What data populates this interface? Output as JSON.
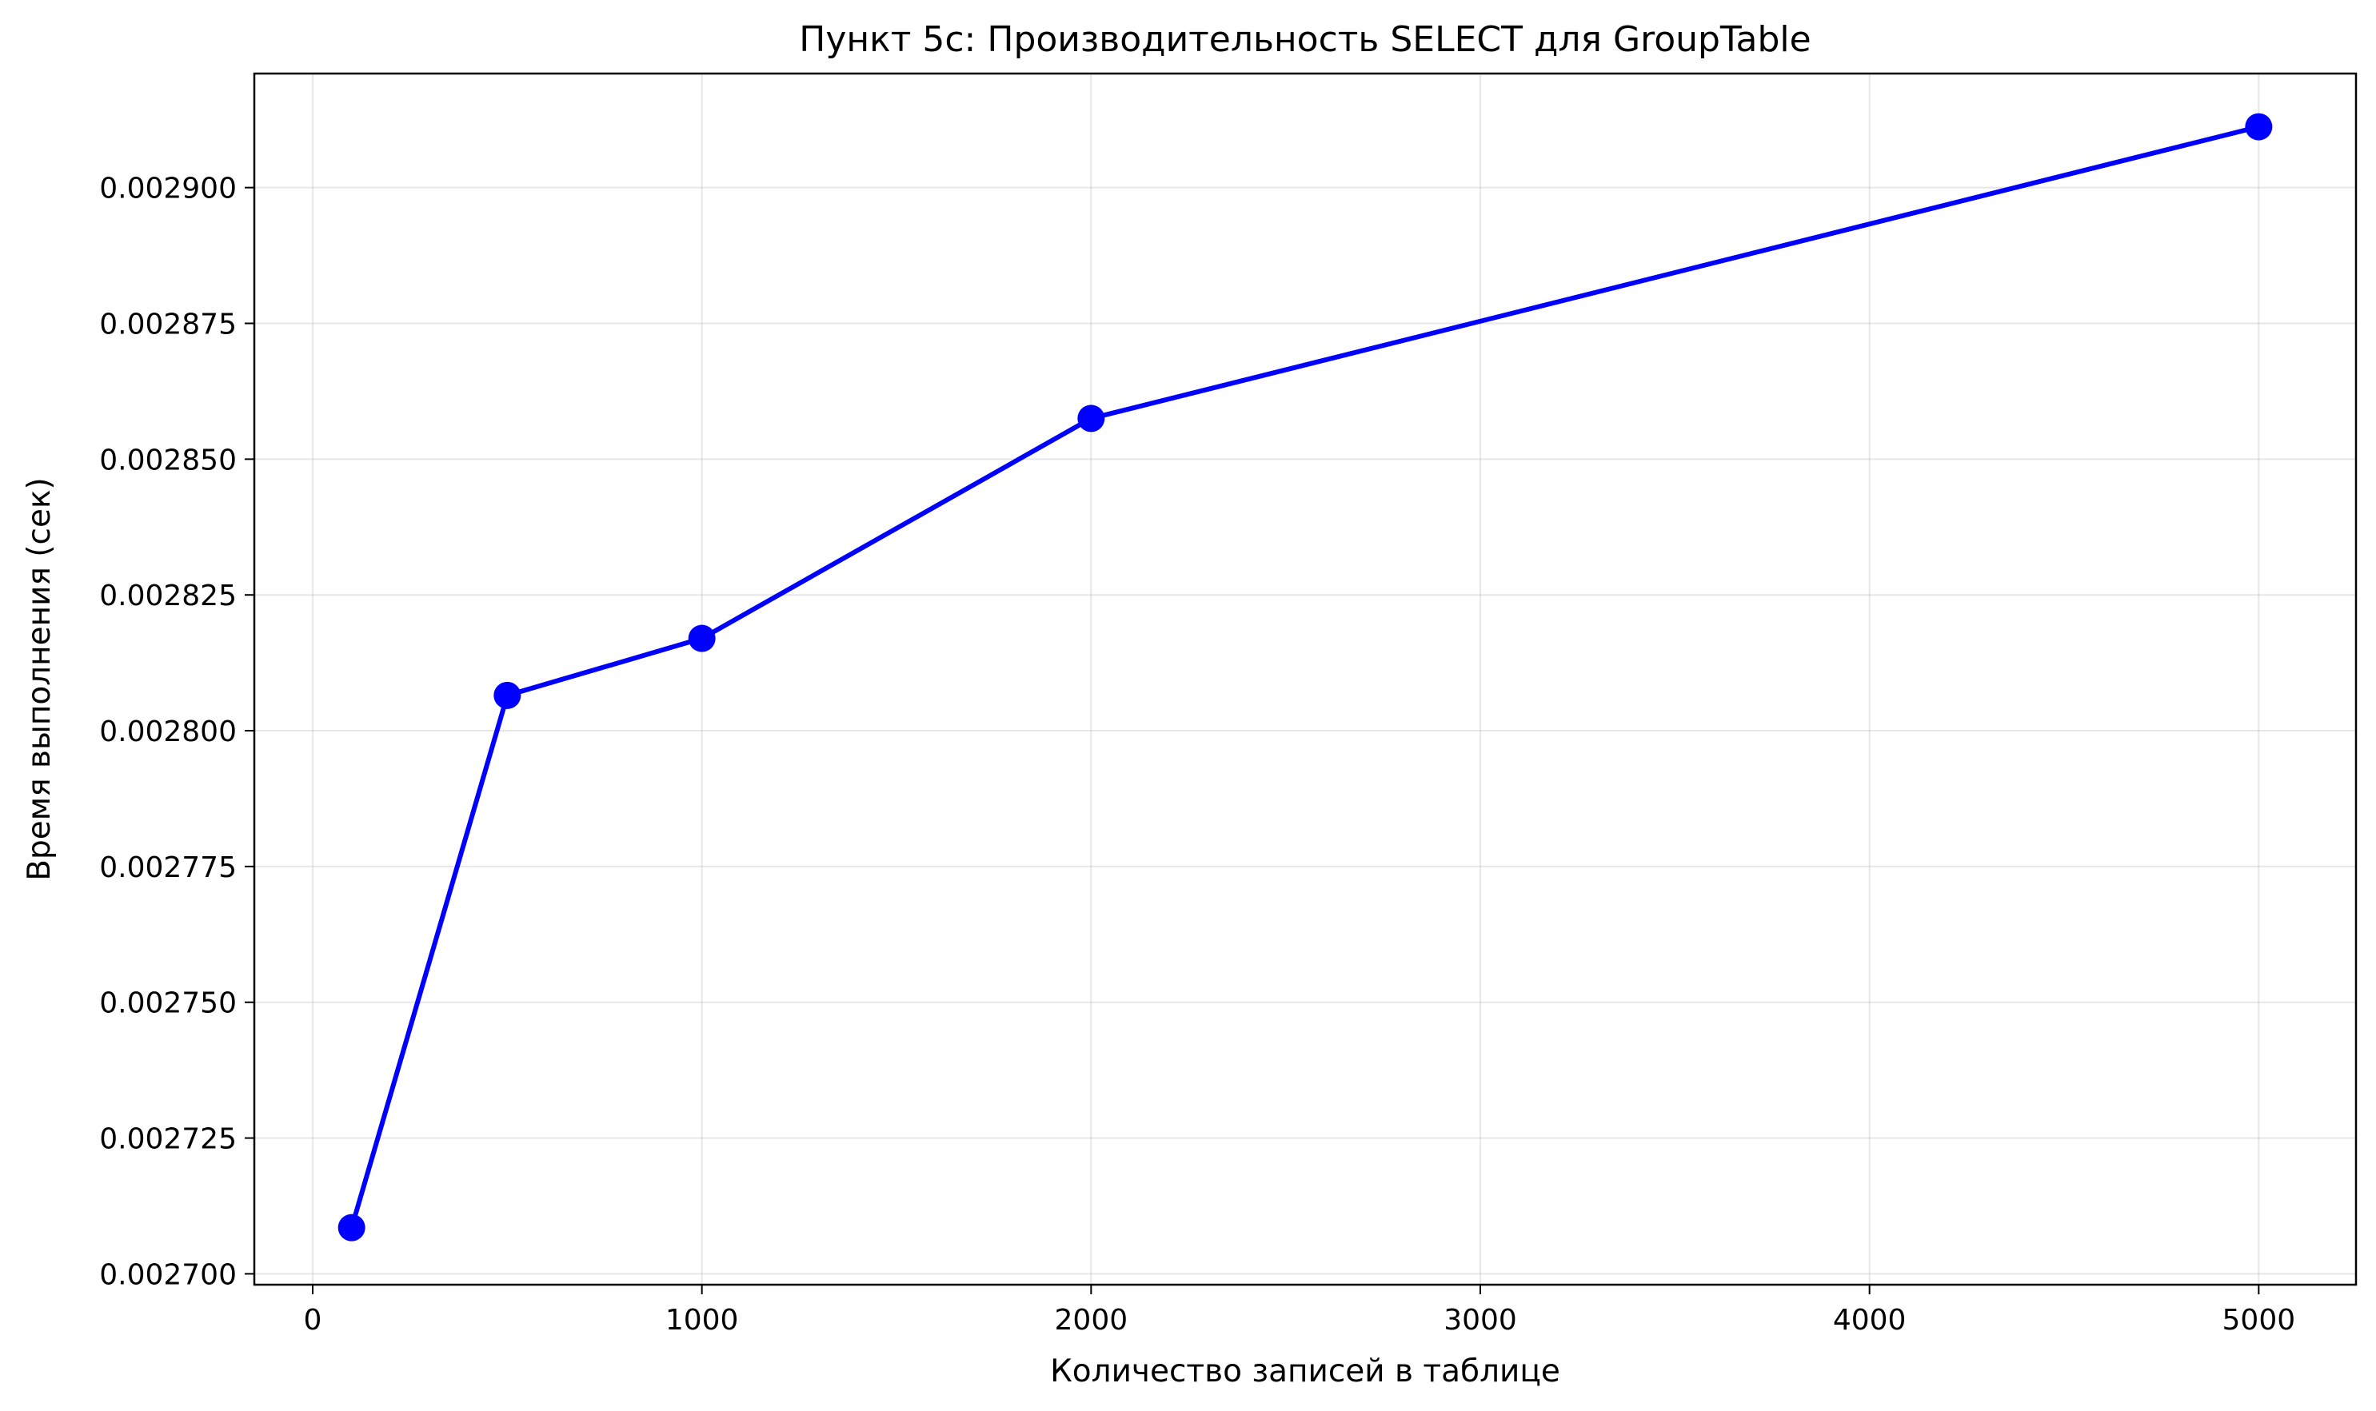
{
  "chart_data": {
    "type": "line",
    "title": "Пункт 5c: Производительность SELECT для GroupTable",
    "xlabel": "Количество записей в таблице",
    "ylabel": "Время выполнения (сек)",
    "xlim": [
      -150,
      5250
    ],
    "ylim": [
      0.002698,
      0.002921
    ],
    "x_ticks": [
      0,
      1000,
      2000,
      3000,
      4000,
      5000
    ],
    "x_tick_labels": [
      "0",
      "1000",
      "2000",
      "3000",
      "4000",
      "5000"
    ],
    "y_ticks": [
      0.0027,
      0.002725,
      0.00275,
      0.002775,
      0.0028,
      0.002825,
      0.00285,
      0.002875,
      0.0029
    ],
    "y_tick_labels": [
      "0.002700",
      "0.002725",
      "0.002750",
      "0.002775",
      "0.002800",
      "0.002825",
      "0.002850",
      "0.002875",
      "0.002900"
    ],
    "grid": true,
    "series": [
      {
        "color": "#0000ff",
        "marker": "circle",
        "x": [
          100,
          500,
          1000,
          2000,
          5000
        ],
        "y": [
          0.0027085,
          0.0028065,
          0.002817,
          0.0028575,
          0.0029112
        ]
      }
    ]
  }
}
